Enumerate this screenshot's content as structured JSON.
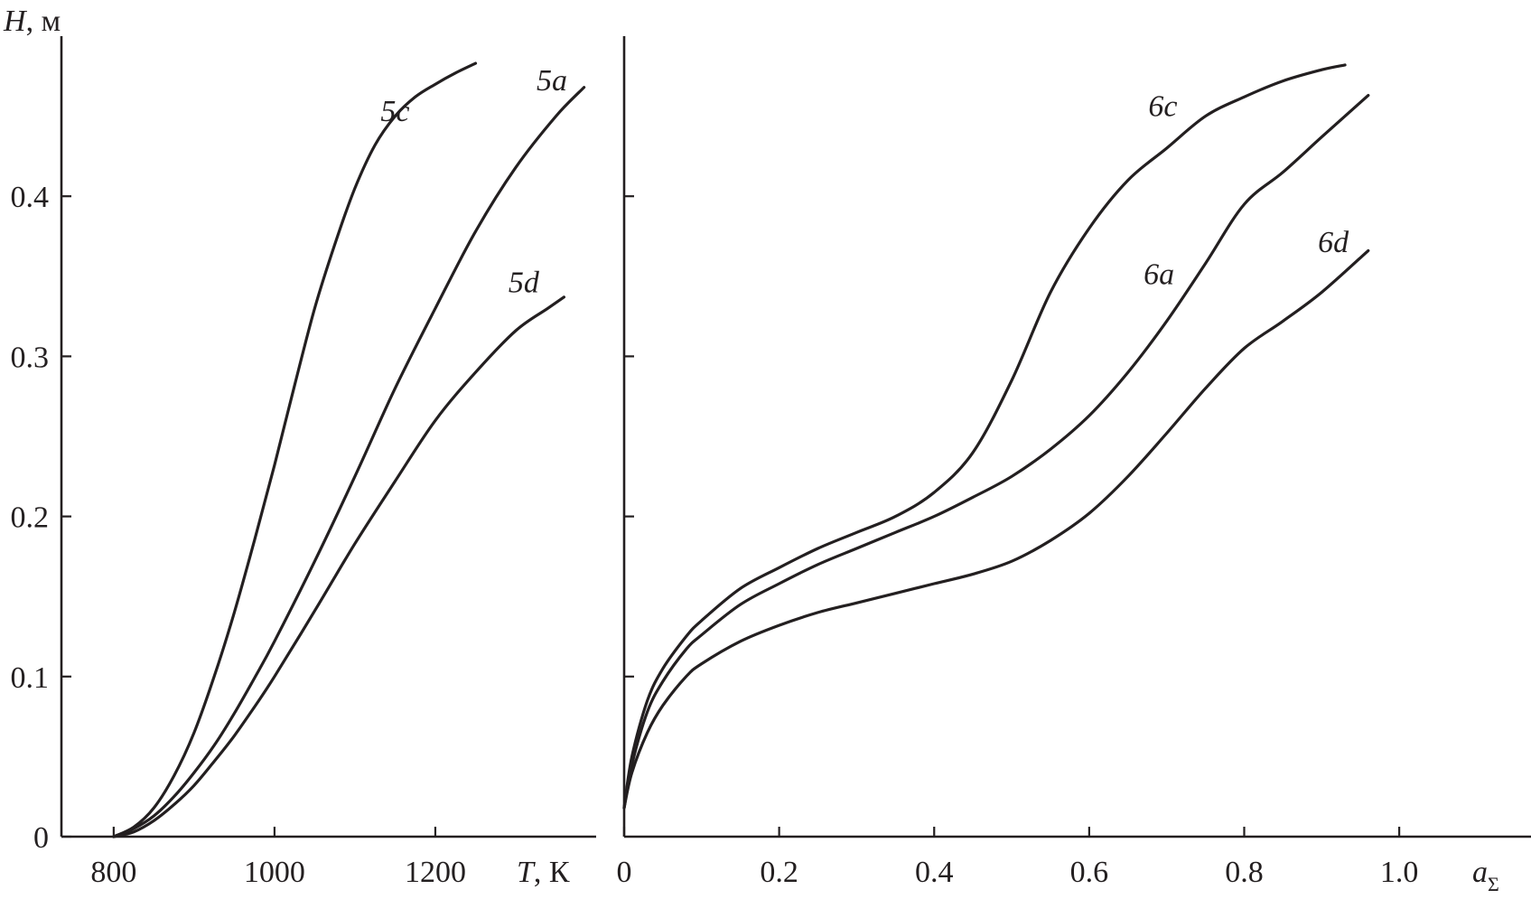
{
  "chart_data": [
    {
      "type": "line",
      "ylabel": {
        "symbol": "H",
        "unit": ", м"
      },
      "xlabel": {
        "symbol": "T",
        "unit": ", К"
      },
      "xlim": [
        735,
        1400
      ],
      "ylim": [
        0,
        0.5
      ],
      "xticks": [
        "800",
        "1000",
        "1200"
      ],
      "xtick_values": [
        800,
        1000,
        1200
      ],
      "yticks": [
        "0",
        "0.1",
        "0.2",
        "0.3",
        "0.4"
      ],
      "ytick_values": [
        0,
        0.1,
        0.2,
        0.3,
        0.4
      ],
      "grid": false,
      "series": [
        {
          "name": "5c",
          "label_at": [
            1150,
            0.447
          ],
          "x": [
            800,
            825,
            850,
            875,
            900,
            925,
            950,
            975,
            1000,
            1025,
            1050,
            1075,
            1100,
            1125,
            1150,
            1175,
            1200,
            1225,
            1250
          ],
          "y": [
            0,
            0.006,
            0.018,
            0.038,
            0.065,
            0.1,
            0.14,
            0.185,
            0.232,
            0.282,
            0.33,
            0.37,
            0.405,
            0.432,
            0.45,
            0.462,
            0.47,
            0.477,
            0.483
          ]
        },
        {
          "name": "5a",
          "label_at": [
            1345,
            0.466
          ],
          "x": [
            800,
            825,
            850,
            875,
            900,
            925,
            950,
            975,
            1000,
            1050,
            1100,
            1150,
            1200,
            1250,
            1300,
            1350,
            1385
          ],
          "y": [
            0,
            0.005,
            0.013,
            0.025,
            0.04,
            0.057,
            0.077,
            0.099,
            0.122,
            0.172,
            0.225,
            0.28,
            0.33,
            0.378,
            0.418,
            0.45,
            0.468
          ]
        },
        {
          "name": "5d",
          "label_at": [
            1310,
            0.34
          ],
          "x": [
            800,
            825,
            850,
            875,
            900,
            925,
            950,
            975,
            1000,
            1050,
            1100,
            1150,
            1200,
            1250,
            1300,
            1340,
            1360
          ],
          "y": [
            0,
            0.003,
            0.01,
            0.02,
            0.032,
            0.047,
            0.063,
            0.081,
            0.1,
            0.141,
            0.183,
            0.222,
            0.26,
            0.29,
            0.316,
            0.33,
            0.337
          ]
        }
      ]
    },
    {
      "type": "line",
      "xlabel": {
        "symbol": "a",
        "subscript": "Σ"
      },
      "xlim": [
        0,
        1.17
      ],
      "ylim": [
        0,
        0.5
      ],
      "xticks": [
        "0",
        "0.2",
        "0.4",
        "0.6",
        "0.8",
        "1.0"
      ],
      "xtick_values": [
        0,
        0.2,
        0.4,
        0.6,
        0.8,
        1.0
      ],
      "ytick_values": [
        0.1,
        0.2,
        0.3,
        0.4
      ],
      "grid": false,
      "series": [
        {
          "name": "6c",
          "label_at": [
            0.695,
            0.45
          ],
          "x": [
            0.0,
            0.01,
            0.03,
            0.05,
            0.08,
            0.1,
            0.15,
            0.2,
            0.25,
            0.3,
            0.35,
            0.4,
            0.45,
            0.5,
            0.55,
            0.6,
            0.65,
            0.7,
            0.75,
            0.8,
            0.85,
            0.9,
            0.93
          ],
          "y": [
            0.018,
            0.05,
            0.085,
            0.105,
            0.125,
            0.135,
            0.155,
            0.168,
            0.18,
            0.19,
            0.2,
            0.215,
            0.24,
            0.285,
            0.34,
            0.38,
            0.41,
            0.43,
            0.45,
            0.462,
            0.472,
            0.479,
            0.482
          ]
        },
        {
          "name": "6a",
          "label_at": [
            0.69,
            0.345
          ],
          "x": [
            0.0,
            0.01,
            0.03,
            0.05,
            0.08,
            0.1,
            0.15,
            0.2,
            0.25,
            0.3,
            0.35,
            0.4,
            0.45,
            0.5,
            0.55,
            0.6,
            0.65,
            0.7,
            0.75,
            0.8,
            0.85,
            0.9,
            0.96
          ],
          "y": [
            0.018,
            0.045,
            0.078,
            0.097,
            0.117,
            0.126,
            0.145,
            0.158,
            0.17,
            0.18,
            0.19,
            0.2,
            0.212,
            0.225,
            0.242,
            0.263,
            0.29,
            0.322,
            0.358,
            0.395,
            0.415,
            0.437,
            0.463
          ]
        },
        {
          "name": "6d",
          "label_at": [
            0.915,
            0.365
          ],
          "x": [
            0.0,
            0.01,
            0.03,
            0.05,
            0.08,
            0.1,
            0.15,
            0.2,
            0.25,
            0.3,
            0.35,
            0.4,
            0.45,
            0.5,
            0.55,
            0.6,
            0.65,
            0.7,
            0.75,
            0.8,
            0.85,
            0.9,
            0.96
          ],
          "y": [
            0.018,
            0.04,
            0.065,
            0.082,
            0.1,
            0.108,
            0.122,
            0.132,
            0.14,
            0.146,
            0.152,
            0.158,
            0.164,
            0.172,
            0.185,
            0.202,
            0.225,
            0.252,
            0.28,
            0.305,
            0.322,
            0.34,
            0.366
          ]
        }
      ]
    }
  ]
}
